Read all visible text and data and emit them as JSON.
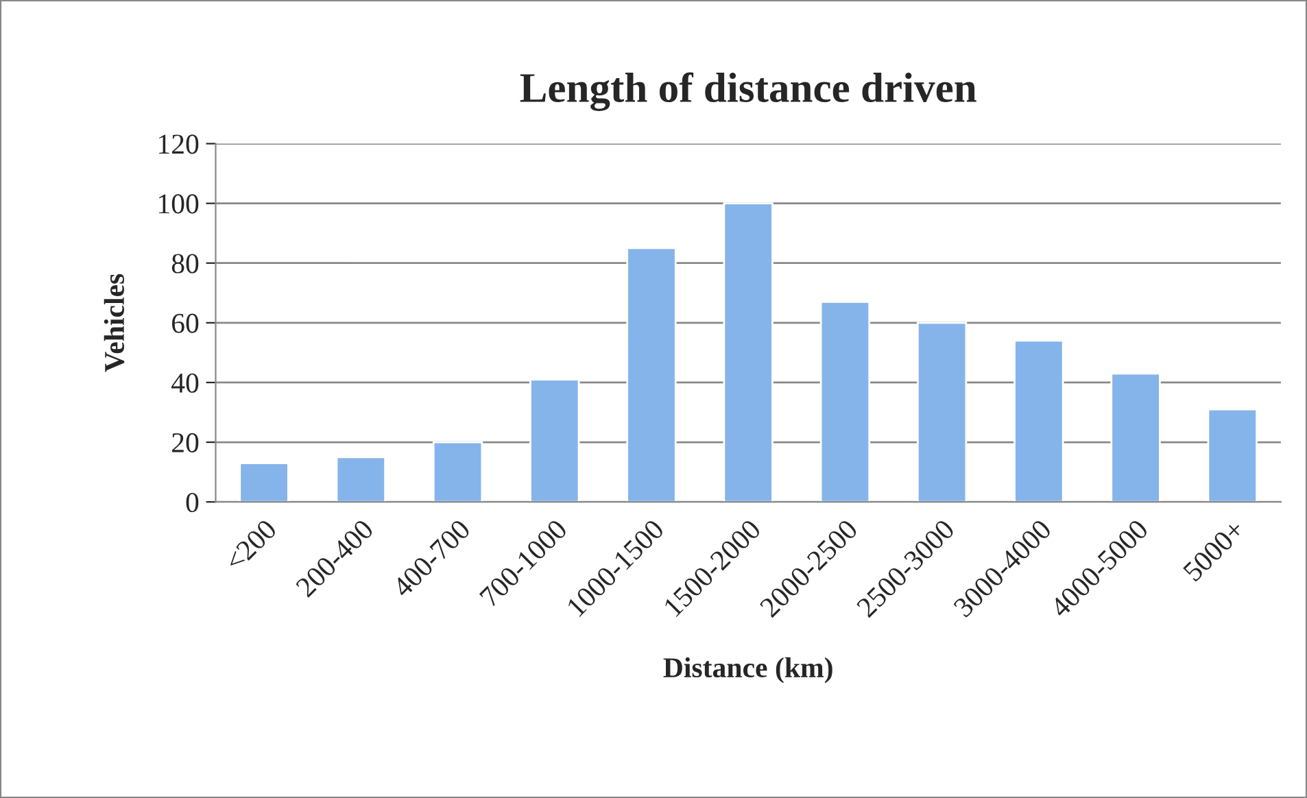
{
  "chart_data": {
    "type": "bar",
    "title": "Length of distance driven",
    "xlabel": "Distance (km)",
    "ylabel": "Vehicles",
    "categories": [
      "<200",
      "200-400",
      "400-700",
      "700-1000",
      "1000-1500",
      "1500-2000",
      "2000-2500",
      "2500-3000",
      "3000-4000",
      "4000-5000",
      "5000+"
    ],
    "values": [
      13,
      15,
      20,
      41,
      85,
      100,
      67,
      60,
      54,
      43,
      31
    ],
    "color": "#85b4ea",
    "ylim": [
      0,
      120
    ],
    "yticks": [
      0,
      20,
      40,
      60,
      80,
      100,
      120
    ],
    "grid": "y",
    "legend": false
  }
}
